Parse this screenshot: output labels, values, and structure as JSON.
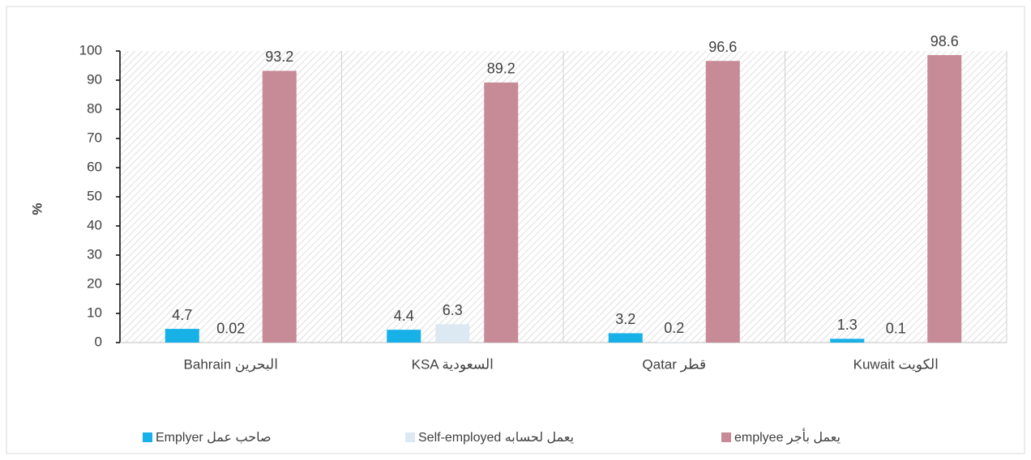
{
  "chart_data": {
    "type": "bar",
    "y_label": "%",
    "categories": [
      "Bahrain البحرين",
      "KSA السعودية",
      "Qatar قطر",
      "Kuwait الكويت"
    ],
    "series": [
      {
        "name": "Emplyer صاحب عمل",
        "color": "#17b1e8",
        "values": [
          4.7,
          4.4,
          3.2,
          1.3
        ]
      },
      {
        "name": "Self-employed يعمل لحسابه",
        "color": "#dce9f2",
        "values": [
          0.02,
          6.3,
          0.2,
          0.1
        ]
      },
      {
        "name": "emplyee يعمل بأجر",
        "color": "#c78a97",
        "values": [
          93.2,
          89.2,
          96.6,
          98.6
        ]
      }
    ],
    "ylim": [
      0,
      100
    ],
    "yticks": [
      0,
      10,
      20,
      30,
      40,
      50,
      60,
      70,
      80,
      90,
      100
    ],
    "grid": false,
    "legend": "bottom"
  }
}
